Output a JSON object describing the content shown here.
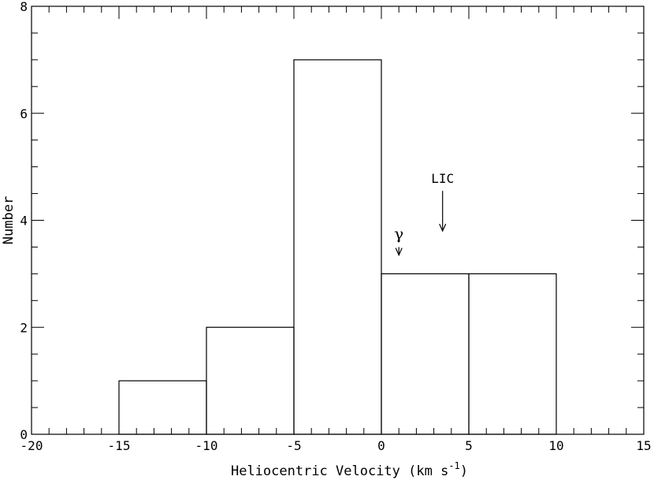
{
  "chart_data": {
    "type": "bar",
    "histogram": true,
    "bins": [
      {
        "from": -15,
        "to": -10,
        "value": 1
      },
      {
        "from": -10,
        "to": -5,
        "value": 2
      },
      {
        "from": -5,
        "to": 0,
        "value": 7
      },
      {
        "from": 0,
        "to": 5,
        "value": 3
      },
      {
        "from": 5,
        "to": 10,
        "value": 3
      }
    ],
    "xlabel_main": "Heliocentric Velocity (km s",
    "xlabel_sup": "-1",
    "xlabel_end": ")",
    "ylabel": "Number",
    "xlim": [
      -20,
      15
    ],
    "ylim": [
      0,
      8
    ],
    "xticks": [
      -20,
      -15,
      -10,
      -5,
      0,
      5,
      10,
      15
    ],
    "xtick_labels": [
      "-20",
      "-15",
      "-10",
      "-5",
      "0",
      "5",
      "10",
      "15"
    ],
    "yticks": [
      0,
      2,
      4,
      6,
      8
    ],
    "ytick_labels": [
      "0",
      "2",
      "4",
      "6",
      "8"
    ],
    "grid": false,
    "annotations": [
      {
        "label": "γ",
        "x": 1.0,
        "y_top": 3.5,
        "y_tip": 3.35,
        "style": "greek"
      },
      {
        "label": "LIC",
        "x": 3.5,
        "y_top": 4.55,
        "y_tip": 3.8,
        "style": "text"
      }
    ]
  }
}
